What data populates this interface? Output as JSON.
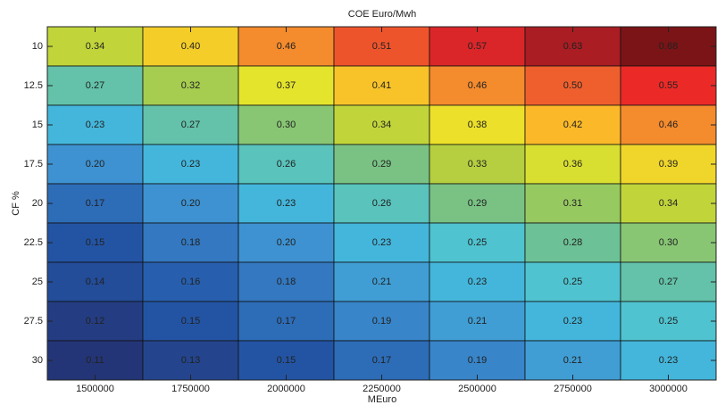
{
  "chart_data": {
    "type": "heatmap",
    "title": "COE Euro/Mwh",
    "x_label": "MEuro",
    "y_label": "CF %",
    "x": [
      1500000,
      1750000,
      2000000,
      2250000,
      2500000,
      2750000,
      3000000
    ],
    "y": [
      10,
      12.5,
      15,
      17.5,
      20,
      22.5,
      25,
      27.5,
      30
    ],
    "values": [
      [
        0.34,
        0.4,
        0.46,
        0.51,
        0.57,
        0.63,
        0.68
      ],
      [
        0.27,
        0.32,
        0.37,
        0.41,
        0.46,
        0.5,
        0.55
      ],
      [
        0.23,
        0.27,
        0.3,
        0.34,
        0.38,
        0.42,
        0.46
      ],
      [
        0.2,
        0.23,
        0.26,
        0.29,
        0.33,
        0.36,
        0.39
      ],
      [
        0.17,
        0.2,
        0.23,
        0.26,
        0.29,
        0.31,
        0.34
      ],
      [
        0.15,
        0.18,
        0.2,
        0.23,
        0.25,
        0.28,
        0.3
      ],
      [
        0.14,
        0.16,
        0.18,
        0.21,
        0.23,
        0.25,
        0.27
      ],
      [
        0.12,
        0.15,
        0.17,
        0.19,
        0.21,
        0.23,
        0.25
      ],
      [
        0.11,
        0.13,
        0.15,
        0.17,
        0.19,
        0.21,
        0.23
      ]
    ],
    "value_labels": [
      [
        "0.34",
        "0.40",
        "0.46",
        "0.51",
        "0.57",
        "0.63",
        "0.68"
      ],
      [
        "0.27",
        "0.32",
        "0.37",
        "0.41",
        "0.46",
        "0.50",
        "0.55"
      ],
      [
        "0.23",
        "0.27",
        "0.30",
        "0.34",
        "0.38",
        "0.42",
        "0.46"
      ],
      [
        "0.20",
        "0.23",
        "0.26",
        "0.29",
        "0.33",
        "0.36",
        "0.39"
      ],
      [
        "0.17",
        "0.20",
        "0.23",
        "0.26",
        "0.29",
        "0.31",
        "0.34"
      ],
      [
        "0.15",
        "0.18",
        "0.20",
        "0.23",
        "0.25",
        "0.28",
        "0.30"
      ],
      [
        "0.14",
        "0.16",
        "0.18",
        "0.21",
        "0.23",
        "0.25",
        "0.27"
      ],
      [
        "0.12",
        "0.15",
        "0.17",
        "0.19",
        "0.21",
        "0.23",
        "0.25"
      ],
      [
        "0.11",
        "0.13",
        "0.15",
        "0.17",
        "0.19",
        "0.21",
        "0.23"
      ]
    ],
    "clim": [
      0.11,
      0.68
    ],
    "colormap": [
      "#243577",
      "#2357a8",
      "#3d8fd0",
      "#47c4df",
      "#72c18c",
      "#b4cf40",
      "#e9e62a",
      "#fbbd29",
      "#f48a2d",
      "#ee5a2d",
      "#ec2a28",
      "#c8222a",
      "#a41c22",
      "#7b1416"
    ]
  }
}
